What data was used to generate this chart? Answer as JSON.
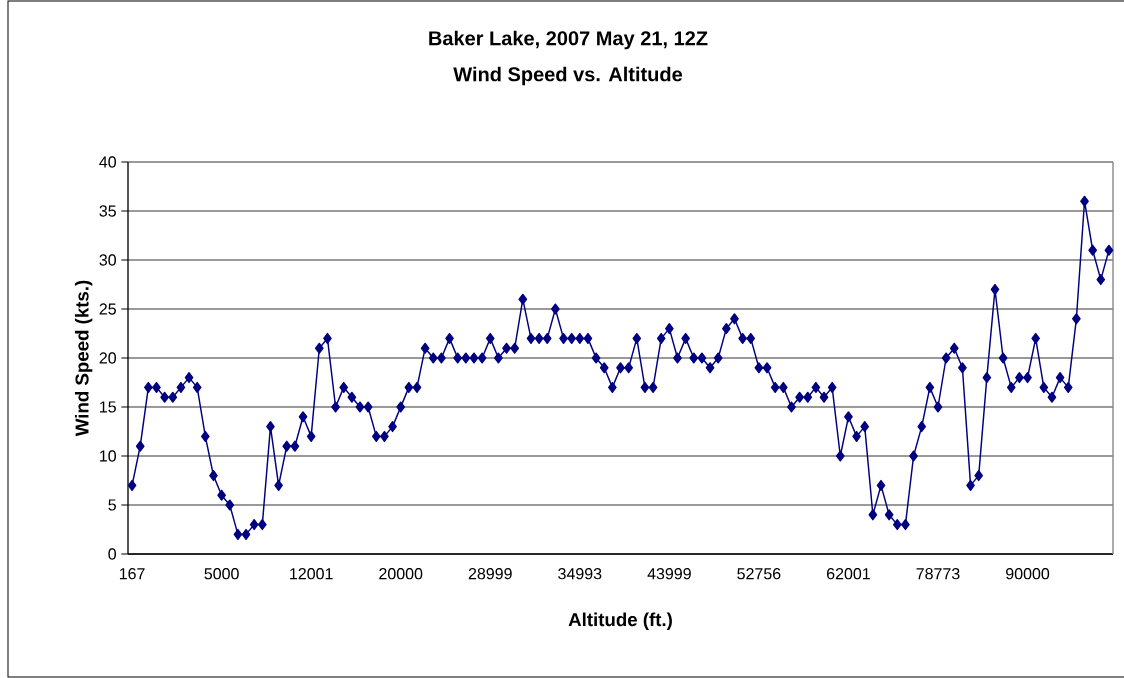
{
  "chart_data": {
    "type": "line",
    "title": "Baker Lake, 2007 May 21, 12Z",
    "subtitle": "Wind Speed vs. Altitude",
    "xlabel": "Altitude (ft.)",
    "ylabel": "Wind Speed (kts.)",
    "categories": [
      "167",
      null,
      null,
      null,
      null,
      null,
      null,
      null,
      null,
      null,
      null,
      "5000",
      null,
      null,
      null,
      null,
      null,
      null,
      null,
      null,
      null,
      null,
      "12001",
      null,
      null,
      null,
      null,
      null,
      null,
      null,
      null,
      null,
      null,
      "20000",
      null,
      null,
      null,
      null,
      null,
      null,
      null,
      null,
      null,
      null,
      "28999",
      null,
      null,
      null,
      null,
      null,
      null,
      null,
      null,
      null,
      null,
      "34993",
      null,
      null,
      null,
      null,
      null,
      null,
      null,
      null,
      null,
      null,
      "43999",
      null,
      null,
      null,
      null,
      null,
      null,
      null,
      null,
      null,
      null,
      "52756",
      null,
      null,
      null,
      null,
      null,
      null,
      null,
      null,
      null,
      null,
      "62001",
      null,
      null,
      null,
      null,
      null,
      null,
      null,
      null,
      null,
      null,
      "78773",
      null,
      null,
      null,
      null,
      null,
      null,
      null,
      null,
      null,
      null,
      "90000",
      null,
      null,
      null,
      null,
      null,
      null,
      null,
      null,
      null,
      null
    ],
    "series": [
      {
        "color": "#000080",
        "values": [
          7,
          11,
          17,
          17,
          16,
          16,
          17,
          18,
          17,
          12,
          8,
          6,
          5,
          2,
          2,
          3,
          3,
          13,
          7,
          11,
          11,
          14,
          12,
          21,
          22,
          15,
          17,
          16,
          15,
          15,
          12,
          12,
          13,
          15,
          17,
          17,
          21,
          20,
          20,
          22,
          20,
          20,
          20,
          20,
          22,
          20,
          21,
          21,
          26,
          22,
          22,
          22,
          25,
          22,
          22,
          22,
          22,
          20,
          19,
          17,
          19,
          19,
          22,
          17,
          17,
          22,
          23,
          20,
          22,
          20,
          20,
          19,
          20,
          23,
          24,
          22,
          22,
          19,
          19,
          17,
          17,
          15,
          16,
          16,
          17,
          16,
          17,
          10,
          14,
          12,
          13,
          4,
          7,
          4,
          3,
          3,
          10,
          13,
          17,
          15,
          20,
          21,
          19,
          7,
          8,
          18,
          27,
          20,
          17,
          18,
          18,
          22,
          17,
          16,
          18,
          17,
          24,
          36,
          31,
          28,
          31
        ]
      }
    ],
    "ylim": [
      0,
      40
    ],
    "yticks": [
      0,
      5,
      10,
      15,
      20,
      25,
      30,
      35,
      40
    ],
    "grid": "y",
    "marker": "diamond",
    "line_style": "solid"
  }
}
